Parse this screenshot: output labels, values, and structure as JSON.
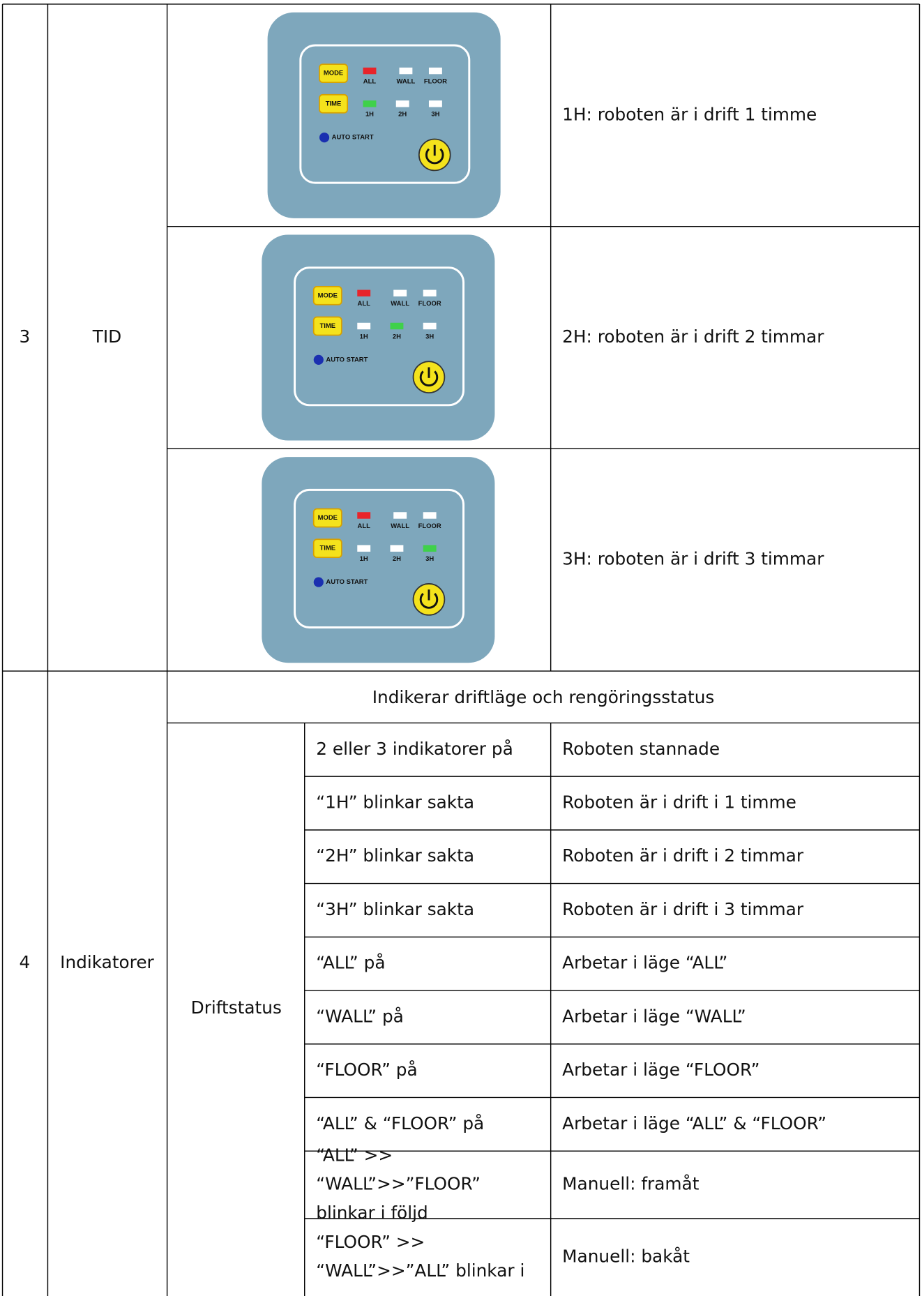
{
  "table": {
    "row3": {
      "number": "3",
      "name": "TID",
      "items": [
        "1H: roboten är i drift 1 timme",
        "2H: roboten är i drift 2 timmar",
        "3H: roboten är i drift 3 timmar"
      ]
    },
    "row4": {
      "number": "4",
      "name": "Indikatorer",
      "header": "Indikerar driftläge och rengöringsstatus",
      "group": "Driftstatus",
      "rows": [
        {
          "condition": [
            "2 eller 3 indikatorer på"
          ],
          "result": "Roboten stannade"
        },
        {
          "condition": [
            "“1H” blinkar sakta"
          ],
          "result": "Roboten är i drift i 1 timme"
        },
        {
          "condition": [
            "“2H” blinkar sakta"
          ],
          "result": "Roboten är i drift i 2 timmar"
        },
        {
          "condition": [
            "“3H” blinkar sakta"
          ],
          "result": "Roboten är i drift i 3 timmar"
        },
        {
          "condition": [
            "“ALL” på"
          ],
          "result": "Arbetar i läge “ALL”"
        },
        {
          "condition": [
            "“WALL” på"
          ],
          "result": "Arbetar i läge “WALL”"
        },
        {
          "condition": [
            "“FLOOR” på"
          ],
          "result": "Arbetar i läge “FLOOR”"
        },
        {
          "condition": [
            "“ALL” & “FLOOR” på"
          ],
          "result": "Arbetar i läge “ALL” & “FLOOR”"
        },
        {
          "condition": [
            "“ALL” >>",
            "“WALL”>>”FLOOR”",
            "blinkar i följd"
          ],
          "result": "Manuell: framåt"
        },
        {
          "condition": [
            "“FLOOR” >>",
            "“WALL”>>”ALL” blinkar i"
          ],
          "result": "Manuell: bakåt"
        }
      ]
    }
  },
  "panel": {
    "mode": "MODE",
    "time": "TIME",
    "all": "ALL",
    "wall": "WALL",
    "floor": "FLOOR",
    "h1": "1H",
    "h2": "2H",
    "h3": "3H",
    "auto": "AUTO START"
  }
}
